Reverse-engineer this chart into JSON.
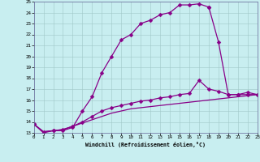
{
  "title": "",
  "xlabel": "Windchill (Refroidissement éolien,°C)",
  "bg_color": "#c8eef0",
  "line_color": "#880088",
  "xlim": [
    0,
    23
  ],
  "ylim": [
    13,
    25
  ],
  "xticks": [
    0,
    1,
    2,
    3,
    4,
    5,
    6,
    7,
    8,
    9,
    10,
    11,
    12,
    13,
    14,
    15,
    16,
    17,
    18,
    19,
    20,
    21,
    22,
    23
  ],
  "yticks": [
    13,
    14,
    15,
    16,
    17,
    18,
    19,
    20,
    21,
    22,
    23,
    24,
    25
  ],
  "series": [
    {
      "x": [
        0,
        1,
        2,
        3,
        4,
        5,
        6,
        7,
        8,
        9,
        10,
        11,
        12,
        13,
        14,
        15,
        16,
        17,
        18
      ],
      "y": [
        13.8,
        13.0,
        13.2,
        13.2,
        13.5,
        15.0,
        16.3,
        18.5,
        20.0,
        21.5,
        22.0,
        23.0,
        23.3,
        23.8,
        24.0,
        24.7,
        24.7,
        24.8,
        24.5
      ],
      "marker": "D",
      "markersize": 2.5,
      "linewidth": 0.9
    },
    {
      "x": [
        18,
        19,
        20,
        21,
        22,
        23
      ],
      "y": [
        24.5,
        21.3,
        16.5,
        16.5,
        16.7,
        16.5
      ],
      "marker": "D",
      "markersize": 2.5,
      "linewidth": 0.9
    },
    {
      "x": [
        0,
        1,
        2,
        3,
        4,
        5,
        6,
        7,
        8,
        9,
        10,
        11,
        12,
        13,
        14,
        15,
        16,
        17,
        18,
        19,
        20,
        21,
        22,
        23
      ],
      "y": [
        13.8,
        13.1,
        13.2,
        13.3,
        13.6,
        14.0,
        14.5,
        15.0,
        15.3,
        15.5,
        15.7,
        15.9,
        16.0,
        16.2,
        16.3,
        16.5,
        16.6,
        17.8,
        17.0,
        16.8,
        16.5,
        16.5,
        16.5,
        16.5
      ],
      "marker": "D",
      "markersize": 2.5,
      "linewidth": 0.9
    },
    {
      "x": [
        0,
        1,
        2,
        3,
        4,
        5,
        6,
        7,
        8,
        9,
        10,
        11,
        12,
        13,
        14,
        15,
        16,
        17,
        18,
        19,
        20,
        21,
        22,
        23
      ],
      "y": [
        13.8,
        13.1,
        13.2,
        13.3,
        13.6,
        13.9,
        14.2,
        14.5,
        14.8,
        15.0,
        15.2,
        15.3,
        15.4,
        15.5,
        15.6,
        15.7,
        15.8,
        15.9,
        16.0,
        16.1,
        16.2,
        16.3,
        16.4,
        16.5
      ],
      "marker": null,
      "markersize": 0,
      "linewidth": 0.9
    }
  ]
}
